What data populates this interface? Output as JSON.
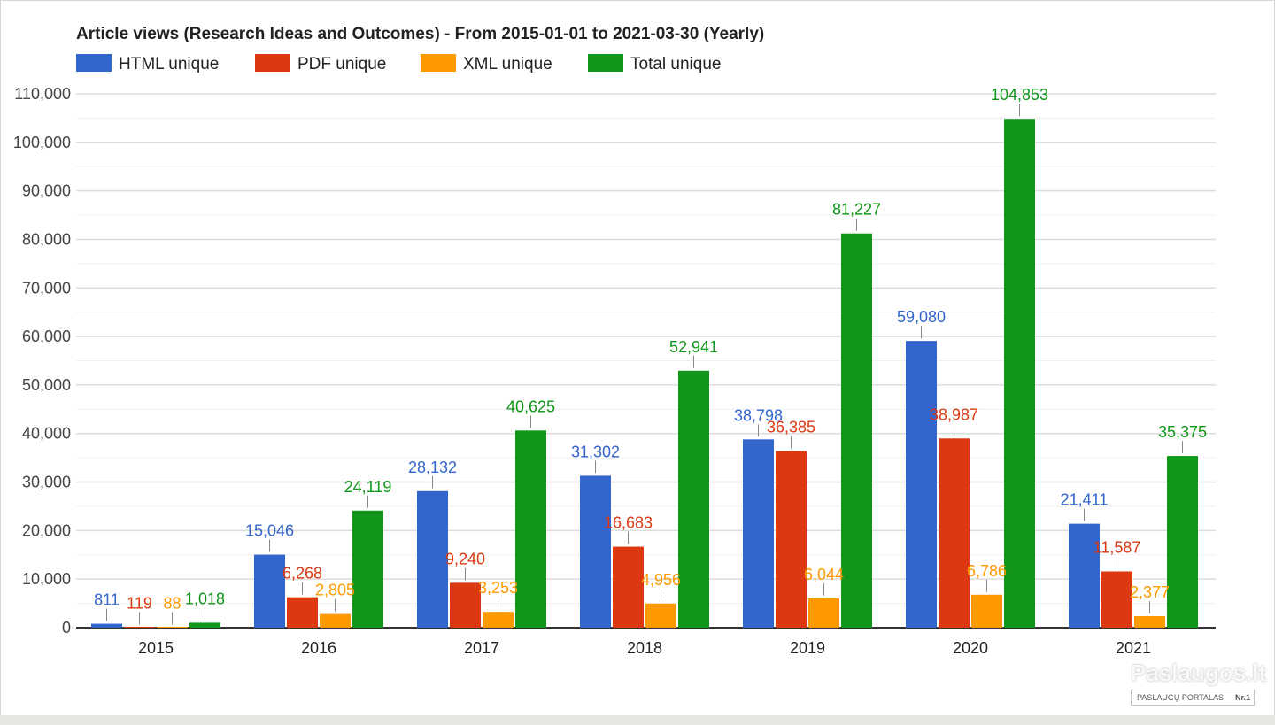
{
  "chart_data": {
    "type": "bar",
    "title": "Article views (Research Ideas and Outcomes) - From 2015-01-01 to 2021-03-30 (Yearly)",
    "categories": [
      "2015",
      "2016",
      "2017",
      "2018",
      "2019",
      "2020",
      "2021"
    ],
    "series": [
      {
        "name": "HTML unique",
        "color": "#3366cc",
        "values": [
          811,
          15046,
          28132,
          31302,
          38798,
          59080,
          21411
        ],
        "labels": [
          "811",
          "15,046",
          "28,132",
          "31,302",
          "38,798",
          "59,080",
          "21,411"
        ]
      },
      {
        "name": "PDF unique",
        "color": "#dc3912",
        "values": [
          119,
          6268,
          9240,
          16683,
          36385,
          38987,
          11587
        ],
        "labels": [
          "119",
          "6,268",
          "9,240",
          "16,683",
          "36,385",
          "38,987",
          "11,587"
        ]
      },
      {
        "name": "XML unique",
        "color": "#ff9900",
        "values": [
          88,
          2805,
          3253,
          4956,
          6044,
          6786,
          2377
        ],
        "labels": [
          "88",
          "2,805",
          "3,253",
          "4,956",
          "6,044",
          "6,786",
          "2,377"
        ]
      },
      {
        "name": "Total unique",
        "color": "#109618",
        "values": [
          1018,
          24119,
          40625,
          52941,
          81227,
          104853,
          35375
        ],
        "labels": [
          "1,018",
          "24,119",
          "40,625",
          "52,941",
          "81,227",
          "104,853",
          "35,375"
        ]
      }
    ],
    "ylim": [
      0,
      110000
    ],
    "yticks": [
      0,
      10000,
      20000,
      30000,
      40000,
      50000,
      60000,
      70000,
      80000,
      90000,
      100000,
      110000
    ],
    "ytick_labels": [
      "0",
      "10,000",
      "20,000",
      "30,000",
      "40,000",
      "50,000",
      "60,000",
      "70,000",
      "80,000",
      "90,000",
      "100,000",
      "110,000"
    ],
    "grid": true,
    "legend_position": "top-left"
  },
  "watermark": {
    "brand": "Paslaugos.lt",
    "tagline": "PASLAUGŲ PORTALAS",
    "badge": "Nr.1"
  }
}
